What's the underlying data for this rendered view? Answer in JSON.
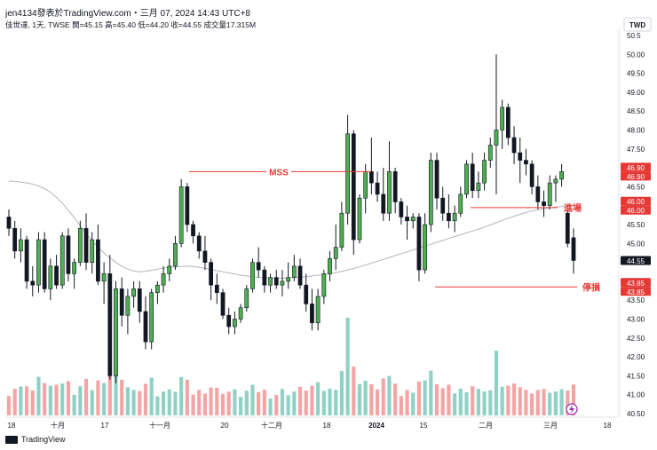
{
  "header": {
    "text": "jen4134發表於TradingView.com・三月 07, 2024 14:43 UTC+8"
  },
  "legend": {
    "text": "佳世達, 1天, TWSE  開=45.15  高=45.40  低=44.20  收=44.55  成交量17.315M"
  },
  "currency": "TWD",
  "footer": {
    "brand": "TradingView"
  },
  "colors": {
    "up": "#22ab94",
    "down": "#131722",
    "upBody": "#4caf50",
    "upVol": "#8fd1c5",
    "downVol": "#f4a4a4",
    "red": "#e53935",
    "ma": "#b2b5be"
  },
  "chart_data": {
    "type": "candlestick",
    "ylim": [
      40.4,
      50.6
    ],
    "y_ticks": [
      "40.50",
      "41.00",
      "41.50",
      "42.00",
      "42.50",
      "43.00",
      "43.50",
      "44.00",
      "44.50",
      "45.00",
      "45.50",
      "46.00",
      "46.50",
      "47.00",
      "47.50",
      "48.00",
      "48.50",
      "49.00",
      "49.50",
      "50.00",
      "50.5"
    ],
    "x_ticks": [
      "18",
      "十月",
      "17",
      "十一月",
      "20",
      "十二月",
      "18",
      "2024",
      "15",
      "二月",
      "三月",
      "18"
    ],
    "price_labels": [
      {
        "value": 46.9,
        "text": "46.90"
      },
      {
        "value": 46.9,
        "text": "46.90"
      },
      {
        "value": 46.0,
        "text": "46.00"
      },
      {
        "value": 46.0,
        "text": "46.00"
      },
      {
        "value": 44.55,
        "text": "44.55"
      },
      {
        "value": 43.85,
        "text": "43.85"
      },
      {
        "value": 43.85,
        "text": "43.85"
      }
    ],
    "annotations": [
      {
        "text": "MSS",
        "level": 46.9
      },
      {
        "text": "進場",
        "level": 45.95
      },
      {
        "text": "停損",
        "level": 43.85
      }
    ],
    "candles": [
      [
        45.7,
        45.9,
        45.2,
        45.4
      ],
      [
        45.4,
        45.6,
        44.6,
        44.8
      ],
      [
        44.8,
        45.4,
        44.5,
        45.1
      ],
      [
        45.1,
        45.2,
        43.8,
        44.0
      ],
      [
        44.0,
        44.4,
        43.6,
        43.9
      ],
      [
        43.9,
        45.3,
        43.7,
        45.1
      ],
      [
        45.1,
        45.3,
        43.7,
        43.8
      ],
      [
        43.8,
        44.6,
        43.5,
        44.4
      ],
      [
        44.4,
        44.7,
        43.8,
        43.9
      ],
      [
        43.9,
        45.3,
        43.8,
        45.2
      ],
      [
        45.2,
        45.4,
        44.0,
        44.2
      ],
      [
        44.2,
        44.6,
        43.8,
        44.5
      ],
      [
        44.5,
        45.6,
        44.4,
        45.4
      ],
      [
        45.4,
        45.8,
        44.3,
        44.5
      ],
      [
        44.5,
        45.3,
        44.2,
        45.1
      ],
      [
        45.1,
        45.5,
        43.9,
        44.0
      ],
      [
        44.0,
        44.5,
        43.4,
        44.2
      ],
      [
        44.2,
        44.7,
        41.4,
        41.5
      ],
      [
        41.5,
        44.0,
        41.3,
        43.8
      ],
      [
        43.8,
        44.1,
        42.8,
        43.1
      ],
      [
        43.1,
        43.8,
        42.6,
        43.6
      ],
      [
        43.6,
        44.0,
        43.3,
        43.8
      ],
      [
        43.8,
        44.0,
        42.9,
        43.2
      ],
      [
        43.2,
        43.6,
        42.2,
        42.4
      ],
      [
        42.4,
        43.8,
        42.2,
        43.7
      ],
      [
        43.7,
        44.0,
        43.4,
        43.9
      ],
      [
        43.9,
        44.4,
        43.7,
        44.2
      ],
      [
        44.2,
        44.6,
        44.0,
        44.4
      ],
      [
        44.4,
        45.2,
        44.3,
        45.0
      ],
      [
        45.0,
        46.7,
        44.9,
        46.5
      ],
      [
        46.5,
        46.6,
        45.3,
        45.5
      ],
      [
        45.5,
        45.6,
        45.0,
        45.2
      ],
      [
        45.2,
        45.3,
        44.6,
        44.8
      ],
      [
        44.8,
        45.2,
        44.3,
        44.5
      ],
      [
        44.5,
        44.6,
        43.5,
        43.9
      ],
      [
        43.9,
        44.2,
        43.4,
        43.7
      ],
      [
        43.7,
        43.8,
        43.0,
        43.1
      ],
      [
        43.1,
        43.3,
        42.6,
        42.8
      ],
      [
        42.8,
        43.2,
        42.6,
        43.0
      ],
      [
        43.0,
        43.4,
        42.9,
        43.3
      ],
      [
        43.3,
        43.9,
        43.2,
        43.8
      ],
      [
        43.8,
        44.6,
        43.7,
        44.5
      ],
      [
        44.5,
        44.9,
        44.1,
        44.3
      ],
      [
        44.3,
        44.4,
        43.7,
        43.9
      ],
      [
        43.9,
        44.2,
        43.7,
        44.1
      ],
      [
        44.1,
        44.3,
        43.8,
        43.9
      ],
      [
        43.9,
        44.3,
        43.6,
        44.0
      ],
      [
        44.0,
        44.5,
        43.8,
        44.1
      ],
      [
        44.1,
        44.7,
        44.0,
        44.4
      ],
      [
        44.4,
        44.6,
        43.8,
        43.9
      ],
      [
        43.9,
        44.2,
        43.2,
        43.4
      ],
      [
        43.4,
        43.8,
        42.7,
        42.9
      ],
      [
        42.9,
        43.8,
        42.7,
        43.6
      ],
      [
        43.6,
        44.3,
        43.4,
        44.2
      ],
      [
        44.2,
        44.8,
        44.0,
        44.6
      ],
      [
        44.6,
        45.5,
        44.3,
        44.9
      ],
      [
        44.9,
        46.1,
        44.8,
        45.8
      ],
      [
        45.8,
        48.4,
        45.5,
        47.9
      ],
      [
        47.9,
        48.0,
        44.7,
        45.1
      ],
      [
        45.1,
        46.3,
        45.0,
        46.2
      ],
      [
        46.2,
        47.1,
        45.8,
        46.9
      ],
      [
        46.9,
        47.8,
        46.3,
        46.6
      ],
      [
        46.6,
        46.9,
        46.1,
        46.3
      ],
      [
        46.3,
        47.0,
        45.6,
        45.8
      ],
      [
        45.8,
        47.7,
        45.6,
        46.9
      ],
      [
        46.9,
        47.0,
        45.8,
        46.1
      ],
      [
        46.1,
        46.2,
        45.5,
        45.7
      ],
      [
        45.7,
        46.0,
        45.1,
        45.6
      ],
      [
        45.6,
        45.8,
        45.4,
        45.7
      ],
      [
        45.7,
        45.8,
        44.0,
        44.3
      ],
      [
        44.3,
        45.8,
        44.2,
        45.5
      ],
      [
        45.5,
        47.4,
        45.3,
        47.2
      ],
      [
        47.2,
        47.4,
        45.9,
        46.2
      ],
      [
        46.2,
        46.5,
        45.6,
        45.8
      ],
      [
        45.8,
        46.3,
        45.4,
        45.6
      ],
      [
        45.6,
        46.0,
        45.3,
        45.8
      ],
      [
        45.8,
        46.5,
        45.7,
        46.3
      ],
      [
        46.3,
        47.2,
        46.2,
        47.1
      ],
      [
        47.1,
        47.4,
        46.2,
        46.4
      ],
      [
        46.4,
        46.9,
        46.2,
        46.6
      ],
      [
        46.6,
        47.4,
        46.4,
        47.2
      ],
      [
        47.2,
        47.8,
        47.0,
        47.6
      ],
      [
        47.6,
        50.0,
        46.3,
        48.0
      ],
      [
        48.0,
        48.8,
        47.5,
        48.6
      ],
      [
        48.6,
        48.7,
        47.6,
        47.8
      ],
      [
        47.8,
        48.1,
        47.1,
        47.4
      ],
      [
        47.4,
        47.8,
        46.6,
        47.2
      ],
      [
        47.2,
        47.5,
        46.8,
        47.1
      ],
      [
        47.1,
        47.2,
        46.3,
        46.5
      ],
      [
        46.5,
        46.8,
        45.9,
        46.1
      ],
      [
        46.1,
        46.4,
        45.7,
        46.0
      ],
      [
        46.0,
        46.8,
        45.9,
        46.6
      ],
      [
        46.6,
        46.8,
        46.1,
        46.7
      ],
      [
        46.7,
        47.1,
        46.5,
        46.9
      ],
      [
        45.8,
        45.9,
        44.9,
        45.0
      ],
      [
        45.15,
        45.4,
        44.2,
        44.55
      ]
    ],
    "ma": [
      46.65,
      46.64,
      46.62,
      46.6,
      46.57,
      46.52,
      46.45,
      46.35,
      46.22,
      46.06,
      45.88,
      45.68,
      45.47,
      45.26,
      45.07,
      44.9,
      44.75,
      44.62,
      44.5,
      44.4,
      44.32,
      44.27,
      44.25,
      44.26,
      44.29,
      44.32,
      44.35,
      44.37,
      44.38,
      44.39,
      44.4,
      44.39,
      44.37,
      44.34,
      44.31,
      44.28,
      44.25,
      44.22,
      44.19,
      44.16,
      44.14,
      44.12,
      44.1,
      44.09,
      44.08,
      44.08,
      44.08,
      44.09,
      44.1,
      44.11,
      44.12,
      44.14,
      44.16,
      44.18,
      44.2,
      44.23,
      44.26,
      44.3,
      44.34,
      44.38,
      44.43,
      44.48,
      44.53,
      44.58,
      44.63,
      44.68,
      44.73,
      44.78,
      44.83,
      44.88,
      44.93,
      44.98,
      45.03,
      45.08,
      45.13,
      45.18,
      45.23,
      45.28,
      45.33,
      45.38,
      45.43,
      45.49,
      45.55,
      45.61,
      45.67,
      45.72,
      45.77,
      45.82,
      45.86,
      45.89,
      45.92,
      45.94,
      45.96,
      45.98,
      46.0,
      46.02
    ]
  }
}
